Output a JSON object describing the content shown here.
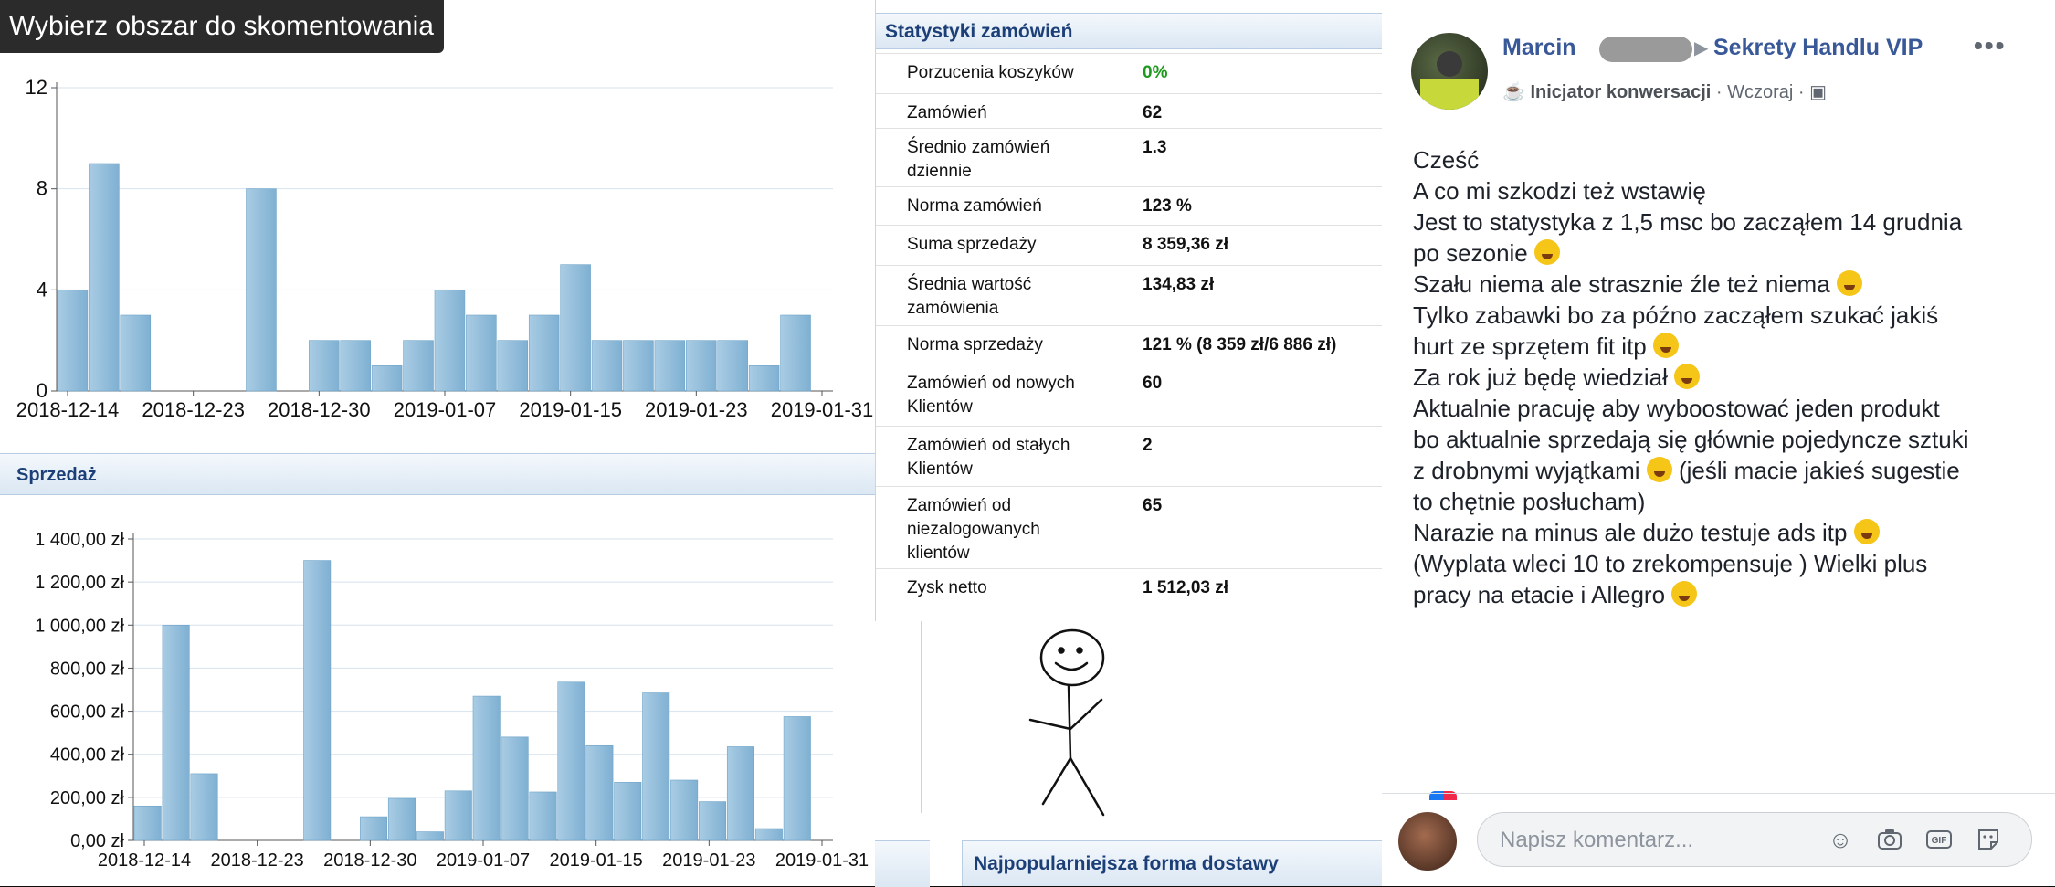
{
  "tooltip": "Wybierz obszar do skomentowania",
  "sales_panel": {
    "title": "Sprzedaż"
  },
  "stats": {
    "title": "Statystyki zamówień",
    "rows": [
      {
        "label": "Porzucenia koszyków",
        "value": "0%"
      },
      {
        "label": "Zamówień",
        "value": "62"
      },
      {
        "label": "Średnio zamówień dziennie",
        "value": "1.3"
      },
      {
        "label": "Norma zamówień",
        "value": "123 %"
      },
      {
        "label": "Suma sprzedaży",
        "value": "8 359,36 zł"
      },
      {
        "label": "Średnia wartość zamówienia",
        "value": "134,83 zł"
      },
      {
        "label": "Norma sprzedaży",
        "value": "121 % (8 359 zł/6 886 zł)"
      },
      {
        "label": "Zamówień od nowych Klientów",
        "value": "60"
      },
      {
        "label": "Zamówień od stałych Klientów",
        "value": "2"
      },
      {
        "label": "Zamówień od niezalogowanych klientów",
        "value": "65"
      },
      {
        "label": "Zysk netto",
        "value": "1 512,03 zł"
      }
    ]
  },
  "delivery_panel": {
    "title": "Najpopularniejsza forma dostawy"
  },
  "facebook": {
    "author": "Marcin",
    "group": "Sekrety Handlu VIP",
    "badge": "Inicjator konwersacji",
    "time": "Wczoraj",
    "post_lines": [
      "Cześć",
      "A co mi szkodzi też wstawię",
      "Jest to statystyka z 1,5 msc bo zacząłem 14 grudnia",
      "po sezonie",
      "Szału niema ale strasznie źle też niema",
      "Tylko zabawki bo za późno zacząłem szukać jakiś",
      "hurt ze sprzętem fit itp",
      "Za rok już będę wiedział",
      "Aktualnie pracuję aby wyboostować jeden produkt",
      "bo aktualnie sprzedają się głównie pojedyncze sztuki",
      "z drobnymi wyjątkami",
      "(jeśli macie jakieś sugestie",
      "to chętnie posłucham)",
      "Narazie na minus ale dużo testuje ads itp",
      "(Wyplata wleci 10 to zrekompensuje ) Wielki plus",
      "pracy na etacie i Allegro"
    ],
    "comment_placeholder": "Napisz komentarz..."
  },
  "chart_data": [
    {
      "type": "bar",
      "title": "",
      "ylim": [
        0,
        12
      ],
      "yticks": [
        0,
        4,
        8,
        12
      ],
      "xtick_labels": [
        "2018-12-14",
        "2018-12-23",
        "2018-12-30",
        "2019-01-07",
        "2019-01-15",
        "2019-01-23",
        "2019-01-31"
      ],
      "values": [
        4,
        9,
        3,
        0,
        0,
        0,
        8,
        0,
        2,
        2,
        1,
        2,
        4,
        3,
        2,
        3,
        5,
        2,
        2,
        2,
        2,
        2,
        1,
        3
      ],
      "color": "#8fbcd9"
    },
    {
      "type": "bar",
      "title": "Sprzedaż",
      "ylim": [
        0,
        1400
      ],
      "ytick_labels": [
        "0,00 zł",
        "200,00 zł",
        "400,00 zł",
        "600,00 zł",
        "800,00 zł",
        "1 000,00 zł",
        "1 200,00 zł",
        "1 400,00 zł"
      ],
      "yticks": [
        0,
        200,
        400,
        600,
        800,
        1000,
        1200,
        1400
      ],
      "xtick_labels": [
        "2018-12-14",
        "2018-12-23",
        "2018-12-30",
        "2019-01-07",
        "2019-01-15",
        "2019-01-23",
        "2019-01-31"
      ],
      "values": [
        160,
        1000,
        310,
        0,
        0,
        0,
        1300,
        0,
        110,
        195,
        40,
        230,
        670,
        480,
        225,
        735,
        440,
        270,
        685,
        280,
        180,
        435,
        55,
        575
      ],
      "color": "#8fbcd9"
    }
  ]
}
